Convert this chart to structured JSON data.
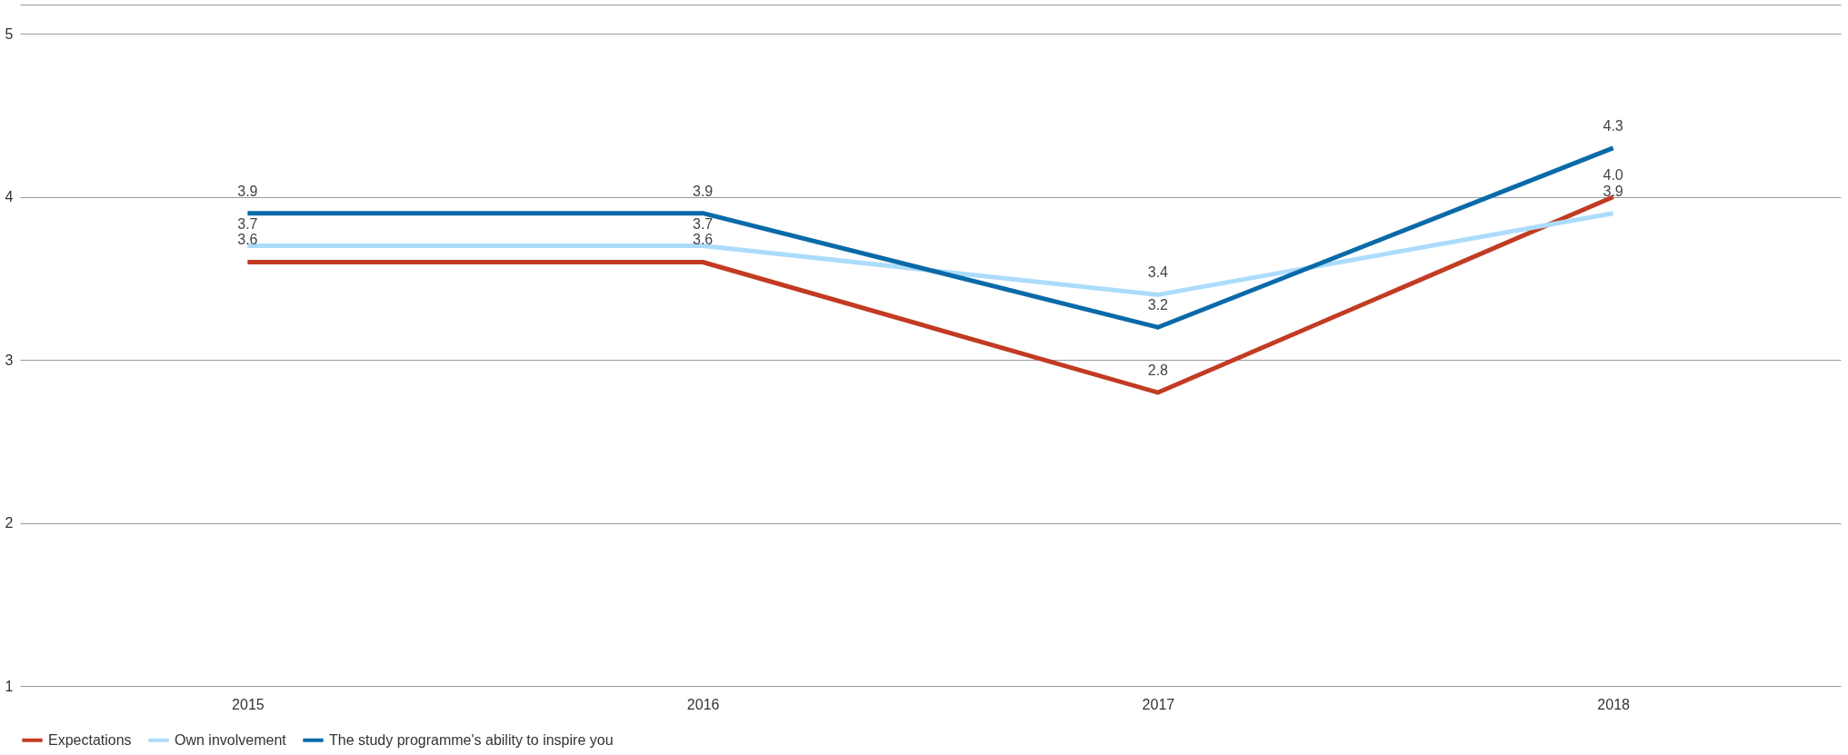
{
  "chart_data": {
    "type": "line",
    "categories": [
      "2015",
      "2016",
      "2017",
      "2018"
    ],
    "series": [
      {
        "name": "Expectations",
        "color": "#c23b22",
        "values": [
          3.6,
          3.6,
          2.8,
          4.0
        ],
        "value_labels": [
          "3.6",
          "3.6",
          "2.8",
          "4.0"
        ]
      },
      {
        "name": "Own involvement",
        "color": "#acdcfc",
        "values": [
          3.7,
          3.7,
          3.4,
          3.9
        ],
        "value_labels": [
          "3.7",
          "3.7",
          "3.4",
          "3.9"
        ]
      },
      {
        "name": "The study programme's ability to inspire you",
        "color": "#0a6aa8",
        "values": [
          3.9,
          3.9,
          3.2,
          4.3
        ],
        "value_labels": [
          "3.9",
          "3.9",
          "3.2",
          "4.3"
        ]
      }
    ],
    "ylim": [
      1,
      5.18
    ],
    "yticks": [
      1,
      2,
      3,
      4,
      5,
      {
        "value": 5.18,
        "label": null
      }
    ],
    "grid": "y",
    "legend": "bottom",
    "marker": "none",
    "line_style": "solid"
  }
}
